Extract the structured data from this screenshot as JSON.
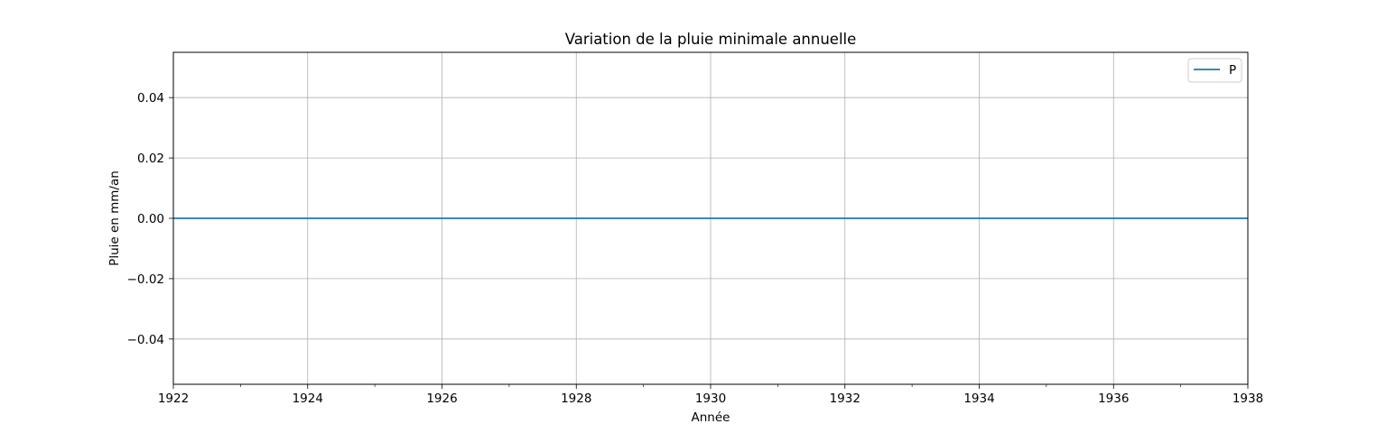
{
  "chart_data": {
    "type": "line",
    "title": "Variation de la pluie minimale annuelle",
    "xlabel": "Année",
    "ylabel": "Pluie en mm/an",
    "xlim": [
      1922,
      1938
    ],
    "ylim": [
      -0.055,
      0.055
    ],
    "x_ticks": [
      1922,
      1924,
      1926,
      1928,
      1930,
      1932,
      1934,
      1936,
      1938
    ],
    "x_tick_labels": [
      "1922",
      "1924",
      "1926",
      "1928",
      "1930",
      "1932",
      "1934",
      "1936",
      "1938"
    ],
    "x_minor_ticks": [
      1923,
      1925,
      1927,
      1929,
      1931,
      1933,
      1935,
      1937
    ],
    "y_ticks": [
      -0.04,
      -0.02,
      0.0,
      0.02,
      0.04
    ],
    "y_tick_labels": [
      "−0.04",
      "−0.02",
      "0.00",
      "0.02",
      "0.04"
    ],
    "grid": true,
    "legend": "top-right",
    "series": [
      {
        "name": "P",
        "color": "#1f77b4",
        "x": [
          1922,
          1923,
          1924,
          1925,
          1926,
          1927,
          1928,
          1929,
          1930,
          1931,
          1932,
          1933,
          1934,
          1935,
          1936,
          1937,
          1938
        ],
        "y": [
          0,
          0,
          0,
          0,
          0,
          0,
          0,
          0,
          0,
          0,
          0,
          0,
          0,
          0,
          0,
          0,
          0
        ]
      }
    ]
  }
}
